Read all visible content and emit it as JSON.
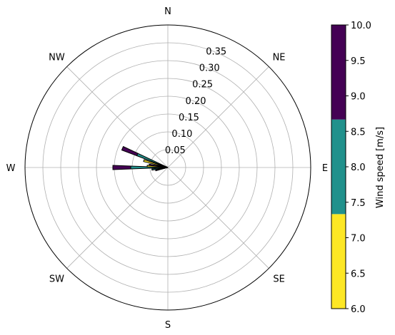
{
  "chart_data": {
    "type": "windrose",
    "title": "",
    "direction_labels": [
      "N",
      "NE",
      "E",
      "SE",
      "S",
      "SW",
      "W",
      "NW"
    ],
    "radial_ticks": [
      "0.05",
      "0.10",
      "0.15",
      "0.20",
      "0.25",
      "0.30",
      "0.35"
    ],
    "radial_tick_values": [
      0.05,
      0.1,
      0.15,
      0.2,
      0.25,
      0.3,
      0.35
    ],
    "rmax": 0.4,
    "grid": true,
    "colorbar": {
      "label": "Wind speed [m/s]",
      "ticks": [
        "6.0",
        "6.5",
        "7.0",
        "7.5",
        "8.0",
        "8.5",
        "9.0",
        "9.5",
        "10.0"
      ],
      "tick_values": [
        6.0,
        6.5,
        7.0,
        7.5,
        8.0,
        8.5,
        9.0,
        9.5,
        10.0
      ],
      "range": [
        6.0,
        10.0
      ],
      "bins": [
        {
          "from": 6.0,
          "to": 7.333,
          "color": "#fde725"
        },
        {
          "from": 7.333,
          "to": 8.667,
          "color": "#21918c"
        },
        {
          "from": 8.667,
          "to": 10.0,
          "color": "#440154"
        }
      ]
    },
    "sector_width_deg": 4.5,
    "sectors": [
      {
        "direction_deg": 293,
        "stacks": [
          0.013,
          0.08,
          0.045
        ]
      },
      {
        "direction_deg": 278,
        "stacks": [
          0.01,
          0.018,
          0.025
        ]
      },
      {
        "direction_deg": 270,
        "stacks": [
          0.012,
          0.092,
          0.05
        ]
      },
      {
        "direction_deg": 263,
        "stacks": [
          0.01,
          0.035,
          0.0
        ]
      },
      {
        "direction_deg": 257,
        "stacks": [
          0.01,
          0.018,
          0.007
        ]
      },
      {
        "direction_deg": 286,
        "stacks": [
          0.07,
          0.0,
          0.0
        ]
      },
      {
        "direction_deg": 274,
        "stacks": [
          0.058,
          0.0,
          0.0
        ]
      }
    ]
  }
}
